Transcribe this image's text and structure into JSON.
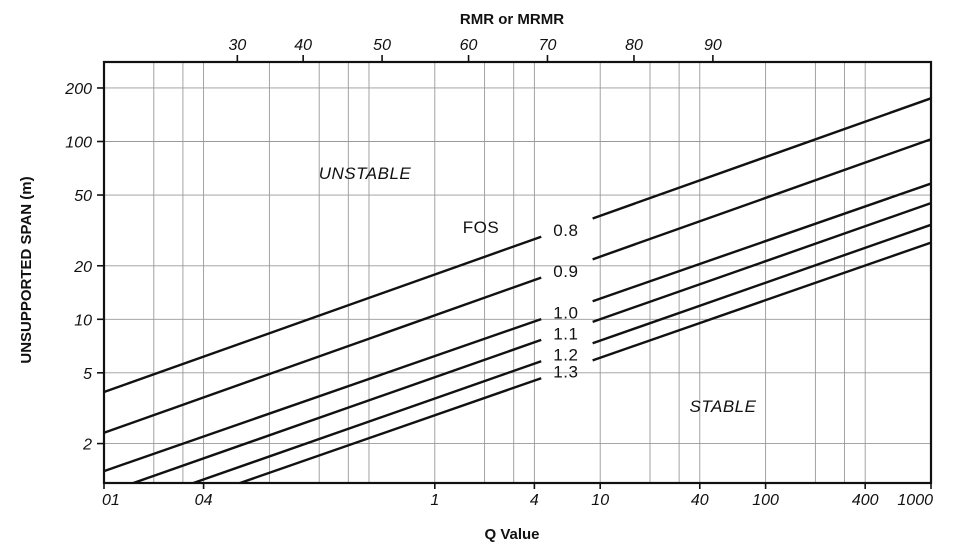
{
  "chart_data": {
    "type": "line",
    "title": "",
    "top_axis_title": "RMR or MRMR",
    "top_ticks": [
      "30",
      "40",
      "50",
      "60",
      "70",
      "80",
      "90"
    ],
    "ylabel": "UNSUPPORTED SPAN (m)",
    "y_ticks": [
      "200",
      "100",
      "50",
      "20",
      "10",
      "5",
      "2"
    ],
    "y_scale": "log",
    "ylim": [
      1.2,
      280
    ],
    "xlabel": "Q Value",
    "x_ticks": [
      "01",
      "04",
      "1",
      "4",
      "10",
      "40",
      "100",
      "400",
      "1000"
    ],
    "x_scale": "log",
    "xlim": [
      0.01,
      1000
    ],
    "x_grid": [
      0.01,
      0.02,
      0.03,
      0.04,
      0.1,
      0.2,
      0.3,
      0.4,
      1,
      2,
      3,
      4,
      10,
      20,
      30,
      40,
      100,
      200,
      300,
      400,
      1000
    ],
    "y_grid": [
      2,
      5,
      10,
      20,
      50,
      100,
      200
    ],
    "grid": true,
    "series_legend_title": "FOS",
    "series": [
      {
        "name": "0.8",
        "x": [
          0.01,
          1000
        ],
        "y": [
          3.9,
          175
        ]
      },
      {
        "name": "0.9",
        "x": [
          0.01,
          1000
        ],
        "y": [
          2.3,
          103
        ]
      },
      {
        "name": "1.0",
        "x": [
          0.01,
          1000
        ],
        "y": [
          1.4,
          58
        ]
      },
      {
        "name": "1.1",
        "x": [
          0.01,
          1000
        ],
        "y": [
          1.05,
          45
        ]
      },
      {
        "name": "1.2",
        "x": [
          0.01,
          1000
        ],
        "y": [
          0.8,
          34
        ]
      },
      {
        "name": "1.3",
        "x": [
          0.01,
          1000
        ],
        "y": [
          0.65,
          27
        ]
      }
    ],
    "annotations": [
      "UNSTABLE",
      "STABLE"
    ]
  }
}
